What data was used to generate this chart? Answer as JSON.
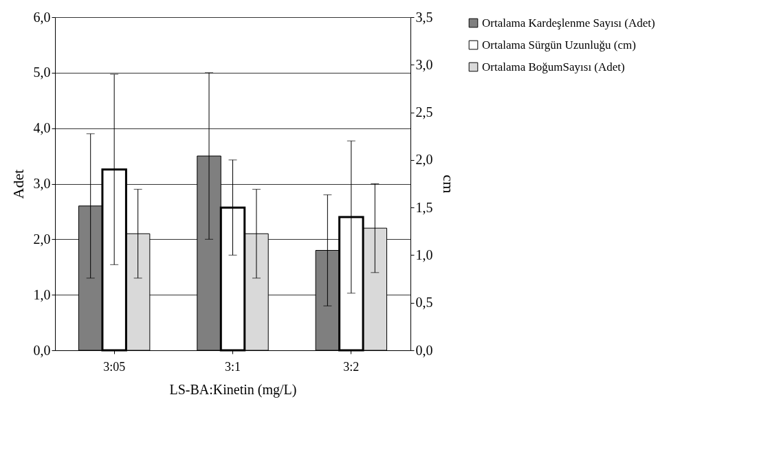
{
  "chart_data": {
    "type": "bar",
    "xlabel": "LS-BA:Kinetin (mg/L)",
    "ylabel": "Adet",
    "y2label": "cm",
    "categories": [
      "3:05",
      "3:1",
      "3:2"
    ],
    "series": [
      {
        "name": "Ortalama Kardeşlenme Sayısı (Adet)",
        "color": "#7f7f7f",
        "values": [
          2.6,
          3.5,
          1.8
        ],
        "errors": [
          1.3,
          1.5,
          1.0
        ]
      },
      {
        "name": "Ortalama Sürgün Uzunluğu (cm)",
        "color": "#ffffff",
        "axis": "y2",
        "values": [
          1.9,
          1.5,
          1.4
        ],
        "errors": [
          1.0,
          0.5,
          0.8
        ]
      },
      {
        "name": "Ortalama BoğumSayısı (Adet)",
        "color": "#d9d9d9",
        "values": [
          2.1,
          2.1,
          2.2
        ],
        "errors": [
          0.8,
          0.8,
          0.8
        ]
      }
    ],
    "ylim": [
      0,
      6
    ],
    "yticks": [
      {
        "value": 0,
        "label": "0,0"
      },
      {
        "value": 1,
        "label": "1,0"
      },
      {
        "value": 2,
        "label": "2,0"
      },
      {
        "value": 3,
        "label": "3,0"
      },
      {
        "value": 4,
        "label": "4,0"
      },
      {
        "value": 5,
        "label": "5,0"
      },
      {
        "value": 6,
        "label": "6,0"
      }
    ],
    "y2lim": [
      0,
      3.5
    ],
    "y2ticks": [
      {
        "value": 0,
        "label": "0,0"
      },
      {
        "value": 0.5,
        "label": "0,5"
      },
      {
        "value": 1,
        "label": "1,0"
      },
      {
        "value": 1.5,
        "label": "1,5"
      },
      {
        "value": 2,
        "label": "2,0"
      },
      {
        "value": 2.5,
        "label": "2,5"
      },
      {
        "value": 3,
        "label": "3,0"
      },
      {
        "value": 3.5,
        "label": "3,5"
      }
    ],
    "grid": "y",
    "legend": "right"
  }
}
